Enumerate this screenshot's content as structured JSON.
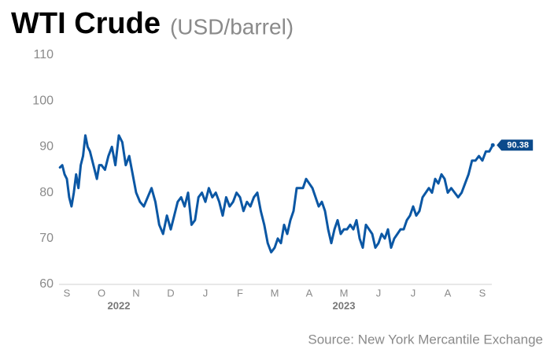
{
  "chart_data": {
    "type": "line",
    "title": "WTI Crude",
    "subtitle": "(USD/barrel)",
    "source": "Source: New York Mercantile Exchange",
    "color": "#0b57a4",
    "end_label_color": "#0b4a8b",
    "ylim": [
      60,
      110
    ],
    "yticks": [
      60,
      70,
      80,
      90,
      100,
      110
    ],
    "grid": false,
    "categories": [
      null,
      null,
      null,
      "S",
      null,
      null,
      null,
      null,
      null,
      null,
      null,
      null,
      null,
      null,
      null,
      null,
      null,
      null,
      "O",
      null,
      null,
      null,
      null,
      null,
      null,
      null,
      null,
      null,
      "N",
      null,
      null,
      null,
      null,
      null,
      null,
      null,
      null,
      "D",
      null,
      null,
      null,
      null,
      null,
      null,
      null,
      null,
      null,
      "J",
      null,
      null,
      null,
      null,
      null,
      null,
      null,
      null,
      null,
      "F",
      null,
      null,
      null,
      null,
      null,
      null,
      null,
      null,
      null,
      "M",
      null,
      null,
      null,
      null,
      null,
      null,
      null,
      null,
      null,
      null,
      "A",
      null,
      null,
      null,
      null,
      null,
      null,
      null,
      null,
      null,
      null,
      "M",
      null,
      null,
      null,
      null,
      null,
      null,
      null,
      null,
      null,
      null,
      "J",
      null,
      null,
      null,
      null,
      null,
      null,
      null,
      null,
      null,
      null,
      "J",
      null,
      null,
      null,
      null,
      null,
      null,
      null,
      null,
      null,
      null,
      "A",
      null,
      null,
      null,
      null,
      null,
      null,
      null,
      null,
      null,
      "S",
      null,
      null,
      null
    ],
    "year_categories": [
      null,
      null,
      null,
      null,
      null,
      null,
      null,
      null,
      null,
      null,
      null,
      null,
      null,
      null,
      null,
      null,
      null,
      null,
      null,
      null,
      null,
      null,
      null,
      "2022",
      null,
      null,
      null,
      null,
      null,
      null,
      null,
      null,
      null,
      null,
      null,
      null,
      null,
      null,
      null,
      null,
      null,
      null,
      null,
      null,
      null,
      null,
      null,
      null,
      null,
      null,
      null,
      null,
      null,
      null,
      null,
      null,
      null,
      null,
      null,
      null,
      null,
      null,
      null,
      null,
      null,
      null,
      null,
      null,
      null,
      null,
      null,
      null,
      null,
      null,
      null,
      null,
      null,
      null,
      null,
      null,
      null,
      null,
      null,
      null,
      null,
      null,
      null,
      null,
      null,
      "2023",
      null,
      null,
      null,
      null,
      null,
      null,
      null,
      null,
      null,
      null,
      null,
      null,
      null,
      null,
      null,
      null,
      null,
      null,
      null,
      null,
      null,
      null,
      null,
      null,
      null,
      null,
      null,
      null,
      null,
      null,
      null,
      null,
      null,
      null,
      null,
      null,
      null,
      null,
      null,
      null,
      null,
      null,
      null,
      null,
      null,
      null,
      null,
      null,
      null,
      null,
      null
    ],
    "values": [
      85.5,
      86,
      84,
      83,
      79,
      77,
      80,
      84,
      81,
      86,
      88,
      92.5,
      90,
      89,
      87,
      85,
      83,
      86,
      86,
      85,
      88,
      90,
      86,
      92.5,
      91,
      86,
      88,
      84,
      80,
      78,
      77,
      79,
      81,
      78,
      73,
      71,
      75,
      72,
      75,
      78,
      79,
      77,
      80,
      73,
      74,
      79,
      80,
      78,
      81,
      79,
      80,
      78,
      75,
      79,
      77,
      78,
      80,
      79,
      76,
      78,
      77,
      79,
      80,
      76,
      73,
      69,
      67,
      68,
      70,
      69,
      73,
      71,
      74,
      76,
      81,
      81,
      81,
      83,
      82,
      81,
      79,
      77,
      78,
      76,
      72,
      69,
      72,
      74,
      71,
      72,
      72,
      73,
      72,
      74,
      70,
      68,
      73,
      72,
      71,
      68,
      69,
      71,
      70,
      72,
      68,
      70,
      71,
      72,
      72,
      74,
      75,
      77,
      75,
      76,
      79,
      80,
      81,
      80,
      83,
      82,
      84,
      83,
      80,
      81,
      80,
      79,
      80,
      82,
      84,
      87,
      87,
      88,
      87,
      89,
      89,
      90.38
    ]
  }
}
